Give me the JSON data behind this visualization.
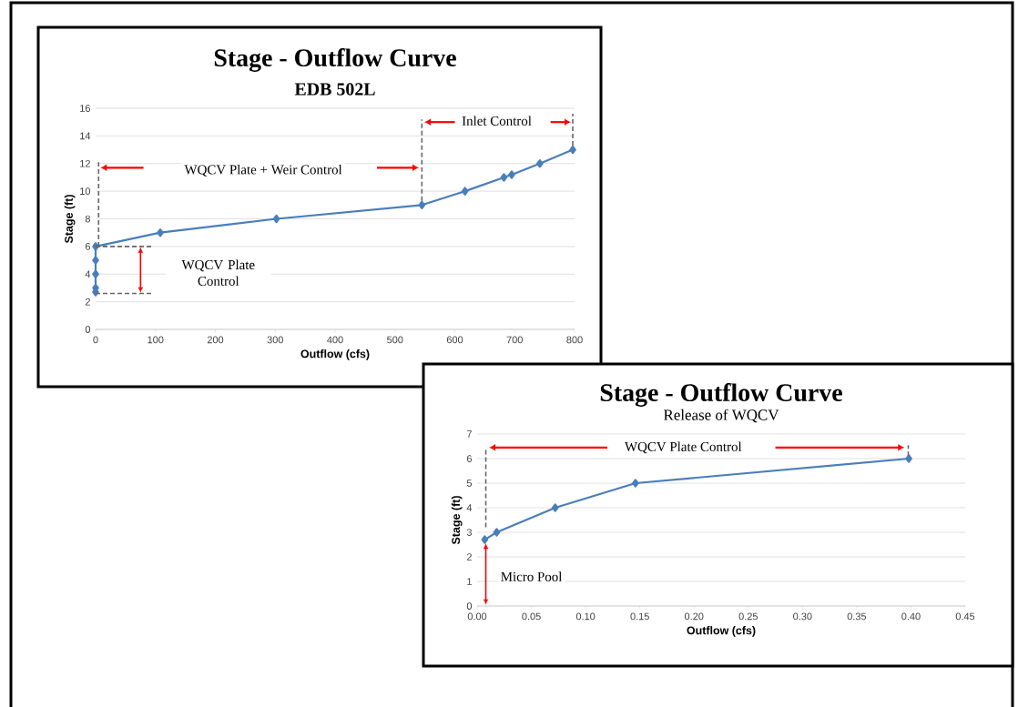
{
  "chart_data": [
    {
      "type": "line",
      "title": "Stage - Outflow Curve",
      "subtitle": "EDB 502L",
      "xlabel": "Outflow (cfs)",
      "ylabel": "Stage (ft)",
      "x": [
        0,
        0,
        0,
        0,
        0,
        108,
        302,
        545,
        617,
        682,
        695,
        742,
        797
      ],
      "values": [
        2.7,
        3,
        4,
        5,
        6,
        7,
        8,
        9,
        10,
        11,
        11.2,
        12,
        13
      ],
      "color": "#4a7ebb",
      "marker": "diamond",
      "grid": "y",
      "xlim": [
        0,
        800
      ],
      "ylim": [
        0,
        16
      ],
      "xticks": [
        0,
        100,
        200,
        300,
        400,
        500,
        600,
        700,
        800
      ],
      "yticks": [
        0,
        2,
        4,
        6,
        8,
        10,
        12,
        14,
        16
      ],
      "annotations": [
        "WQCV Plate + Weir Control",
        "Inlet Control",
        "WQCV Plate Control"
      ]
    },
    {
      "type": "line",
      "title": "Stage - Outflow Curve",
      "subtitle": "Release of WQCV",
      "xlabel": "Outflow (cfs)",
      "ylabel": "Stage (ft)",
      "x": [
        0.007,
        0.018,
        0.072,
        0.146,
        0.398
      ],
      "values": [
        2.7,
        3,
        4,
        5,
        6
      ],
      "color": "#4a7ebb",
      "marker": "diamond",
      "grid": "y",
      "xlim": [
        0,
        0.45
      ],
      "ylim": [
        0,
        7
      ],
      "xticks": [
        {
          "value": 0,
          "label": "0.00"
        },
        {
          "value": 0.05,
          "label": "0.05"
        },
        {
          "value": 0.1,
          "label": "0.10"
        },
        {
          "value": 0.15,
          "label": "0.15"
        },
        {
          "value": 0.2,
          "label": "0.20"
        },
        {
          "value": 0.25,
          "label": "0.25"
        },
        {
          "value": 0.3,
          "label": "0.30"
        },
        {
          "value": 0.35,
          "label": "0.35"
        },
        {
          "value": 0.4,
          "label": "0.40"
        },
        {
          "value": 0.45,
          "label": "0.45"
        }
      ],
      "yticks": [
        0,
        1,
        2,
        3,
        4,
        5,
        6,
        7
      ],
      "annotations": [
        "WQCV Plate Control",
        "Micro Pool"
      ]
    }
  ]
}
